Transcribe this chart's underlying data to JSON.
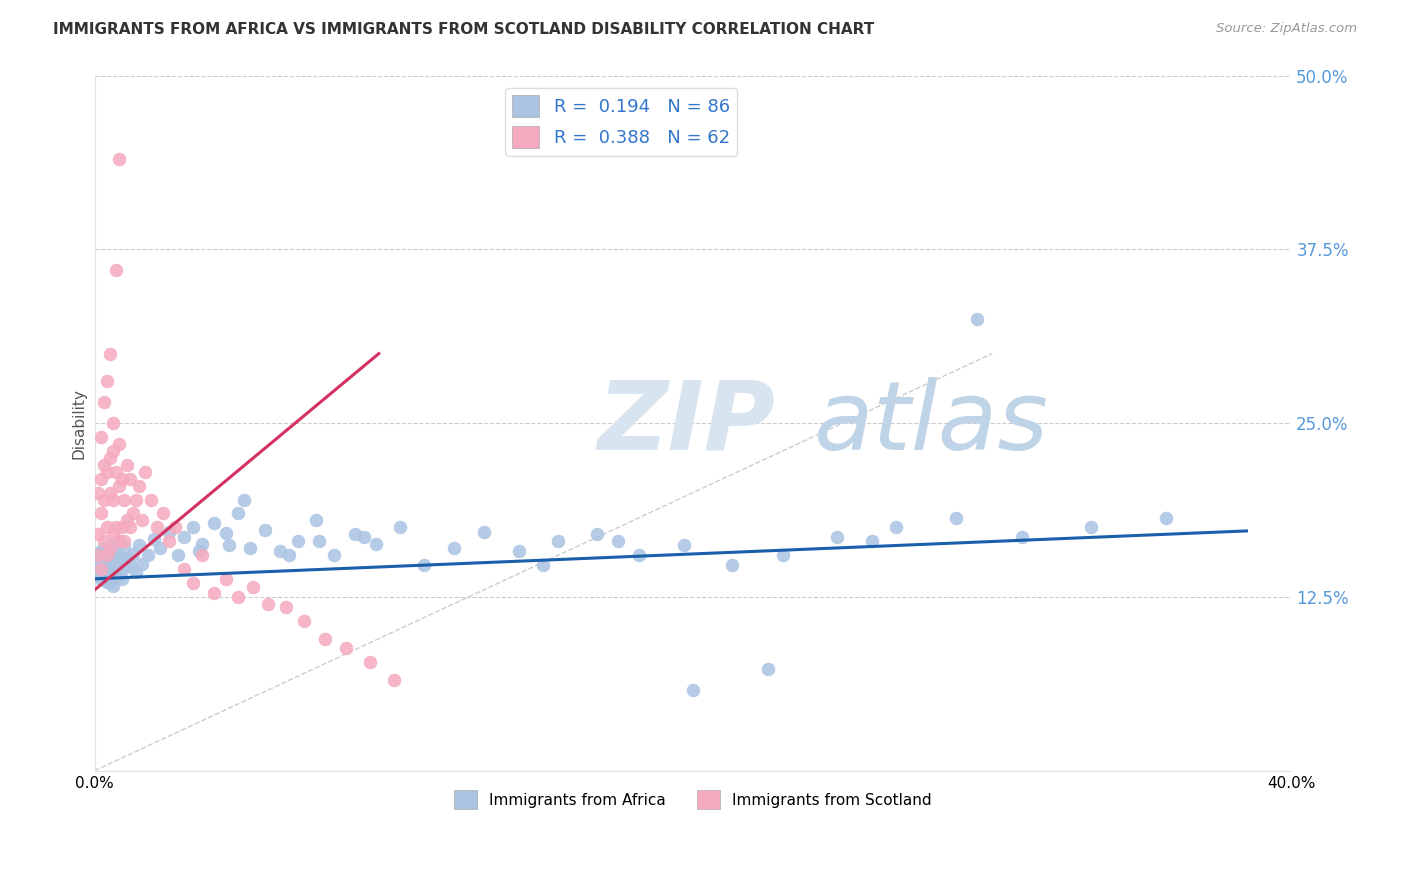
{
  "title": "IMMIGRANTS FROM AFRICA VS IMMIGRANTS FROM SCOTLAND DISABILITY CORRELATION CHART",
  "source": "Source: ZipAtlas.com",
  "ylabel": "Disability",
  "ytick_vals": [
    0.0,
    0.125,
    0.25,
    0.375,
    0.5
  ],
  "ytick_labels": [
    "",
    "12.5%",
    "25.0%",
    "37.5%",
    "50.0%"
  ],
  "xtick_vals": [
    0.0,
    0.05,
    0.1,
    0.15,
    0.2,
    0.25,
    0.3,
    0.35,
    0.4
  ],
  "xlim": [
    0.0,
    0.4
  ],
  "ylim": [
    0.0,
    0.5
  ],
  "africa_R": "0.194",
  "africa_N": "86",
  "scotland_R": "0.388",
  "scotland_N": "62",
  "africa_color": "#aac4e2",
  "scotland_color": "#f5aabf",
  "africa_line_color": "#1a5faa",
  "scotland_line_color": "#d43060",
  "grid_color": "#cccccc",
  "watermark_zip_color": "#d8e4ef",
  "watermark_atlas_color": "#c0d4e8",
  "background_color": "#ffffff",
  "tick_label_color": "#5599dd",
  "legend_label_color": "#3377cc",
  "africa_legend": "Immigrants from Africa",
  "scotland_legend": "Immigrants from Scotland",
  "africa_x": [
    0.001,
    0.001,
    0.001,
    0.002,
    0.002,
    0.002,
    0.002,
    0.003,
    0.003,
    0.003,
    0.003,
    0.003,
    0.004,
    0.004,
    0.004,
    0.004,
    0.005,
    0.005,
    0.005,
    0.005,
    0.006,
    0.006,
    0.006,
    0.007,
    0.007,
    0.007,
    0.008,
    0.008,
    0.009,
    0.009,
    0.01,
    0.01,
    0.011,
    0.012,
    0.013,
    0.014,
    0.015,
    0.016,
    0.018,
    0.02,
    0.022,
    0.025,
    0.028,
    0.03,
    0.033,
    0.036,
    0.04,
    0.044,
    0.048,
    0.052,
    0.057,
    0.062,
    0.068,
    0.074,
    0.08,
    0.087,
    0.094,
    0.102,
    0.11,
    0.12,
    0.13,
    0.142,
    0.155,
    0.168,
    0.182,
    0.197,
    0.213,
    0.23,
    0.248,
    0.268,
    0.288,
    0.31,
    0.333,
    0.358,
    0.05,
    0.065,
    0.075,
    0.09,
    0.035,
    0.045,
    0.15,
    0.175,
    0.2,
    0.225,
    0.26,
    0.295
  ],
  "africa_y": [
    0.145,
    0.14,
    0.155,
    0.138,
    0.15,
    0.143,
    0.158,
    0.137,
    0.148,
    0.153,
    0.142,
    0.16,
    0.136,
    0.151,
    0.144,
    0.157,
    0.135,
    0.149,
    0.152,
    0.141,
    0.163,
    0.133,
    0.155,
    0.147,
    0.159,
    0.139,
    0.165,
    0.143,
    0.152,
    0.138,
    0.161,
    0.146,
    0.153,
    0.148,
    0.156,
    0.143,
    0.162,
    0.149,
    0.155,
    0.167,
    0.16,
    0.172,
    0.155,
    0.168,
    0.175,
    0.163,
    0.178,
    0.171,
    0.185,
    0.16,
    0.173,
    0.158,
    0.165,
    0.18,
    0.155,
    0.17,
    0.163,
    0.175,
    0.148,
    0.16,
    0.172,
    0.158,
    0.165,
    0.17,
    0.155,
    0.162,
    0.148,
    0.155,
    0.168,
    0.175,
    0.182,
    0.168,
    0.175,
    0.182,
    0.195,
    0.155,
    0.165,
    0.168,
    0.158,
    0.162,
    0.148,
    0.165,
    0.058,
    0.073,
    0.165,
    0.325
  ],
  "scotland_x": [
    0.001,
    0.001,
    0.001,
    0.002,
    0.002,
    0.002,
    0.003,
    0.003,
    0.003,
    0.004,
    0.004,
    0.004,
    0.005,
    0.005,
    0.005,
    0.006,
    0.006,
    0.006,
    0.007,
    0.007,
    0.008,
    0.008,
    0.008,
    0.009,
    0.009,
    0.01,
    0.01,
    0.011,
    0.011,
    0.012,
    0.012,
    0.013,
    0.014,
    0.015,
    0.016,
    0.017,
    0.019,
    0.021,
    0.023,
    0.025,
    0.027,
    0.03,
    0.033,
    0.036,
    0.04,
    0.044,
    0.048,
    0.053,
    0.058,
    0.064,
    0.07,
    0.077,
    0.084,
    0.092,
    0.1,
    0.002,
    0.003,
    0.004,
    0.005,
    0.006,
    0.007,
    0.008
  ],
  "scotland_y": [
    0.155,
    0.2,
    0.17,
    0.145,
    0.185,
    0.21,
    0.165,
    0.195,
    0.22,
    0.155,
    0.175,
    0.215,
    0.16,
    0.2,
    0.225,
    0.17,
    0.195,
    0.23,
    0.175,
    0.215,
    0.165,
    0.205,
    0.235,
    0.175,
    0.21,
    0.165,
    0.195,
    0.18,
    0.22,
    0.175,
    0.21,
    0.185,
    0.195,
    0.205,
    0.18,
    0.215,
    0.195,
    0.175,
    0.185,
    0.165,
    0.175,
    0.145,
    0.135,
    0.155,
    0.128,
    0.138,
    0.125,
    0.132,
    0.12,
    0.118,
    0.108,
    0.095,
    0.088,
    0.078,
    0.065,
    0.24,
    0.265,
    0.28,
    0.3,
    0.25,
    0.36,
    0.44
  ]
}
